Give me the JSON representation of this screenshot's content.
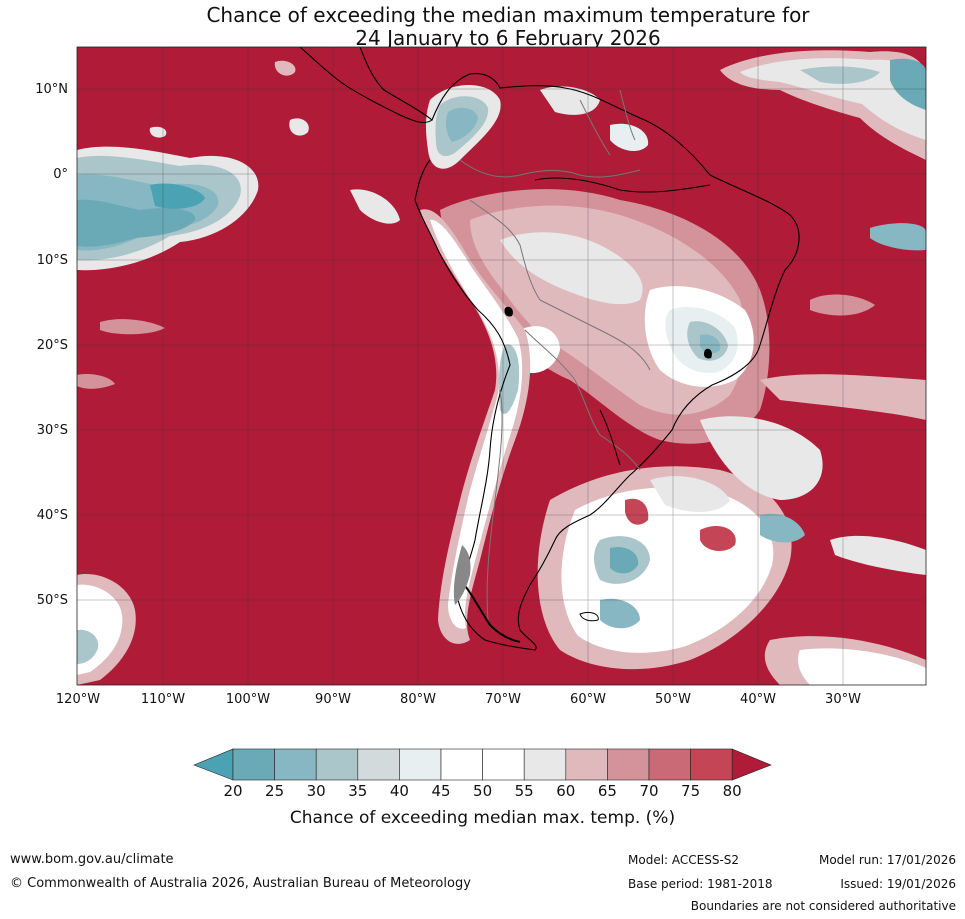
{
  "title": {
    "line1": "Chance of exceeding the median maximum temperature for",
    "line2": "24 January to 6 February 2026"
  },
  "map": {
    "lat_labels": [
      "10°N",
      "0°",
      "10°S",
      "20°S",
      "30°S",
      "40°S",
      "50°S"
    ],
    "lon_labels": [
      "120°W",
      "110°W",
      "100°W",
      "90°W",
      "80°W",
      "70°W",
      "60°W",
      "50°W",
      "40°W",
      "30°W"
    ],
    "colors": {
      "c80": "#b01c37",
      "c75": "#c44656",
      "c70": "#c96a76",
      "c65": "#d4939b",
      "c60": "#e0b9bd",
      "c55": "#e8e8e8",
      "c45": "#ffffff",
      "c40": "#e7eff1",
      "c35": "#d2dadc",
      "c30": "#abc6cb",
      "c25": "#87b7c2",
      "c20": "#6aaab6",
      "lt20": "#4ba2b2"
    }
  },
  "colorbar": {
    "ticks": [
      "20",
      "25",
      "30",
      "35",
      "40",
      "45",
      "50",
      "55",
      "60",
      "65",
      "70",
      "75",
      "80"
    ],
    "label": "Chance of exceeding median max. temp. (%)"
  },
  "footer": {
    "url": "www.bom.gov.au/climate",
    "copyright": "© Commonwealth of Australia 2026, Australian Bureau of Meteorology",
    "model": "Model: ACCESS-S2",
    "base_period": "Base period: 1981-2018",
    "model_run": "Model run: 17/01/2026",
    "issued": "Issued: 19/01/2026",
    "disclaimer": "Boundaries are not considered authoritative"
  }
}
